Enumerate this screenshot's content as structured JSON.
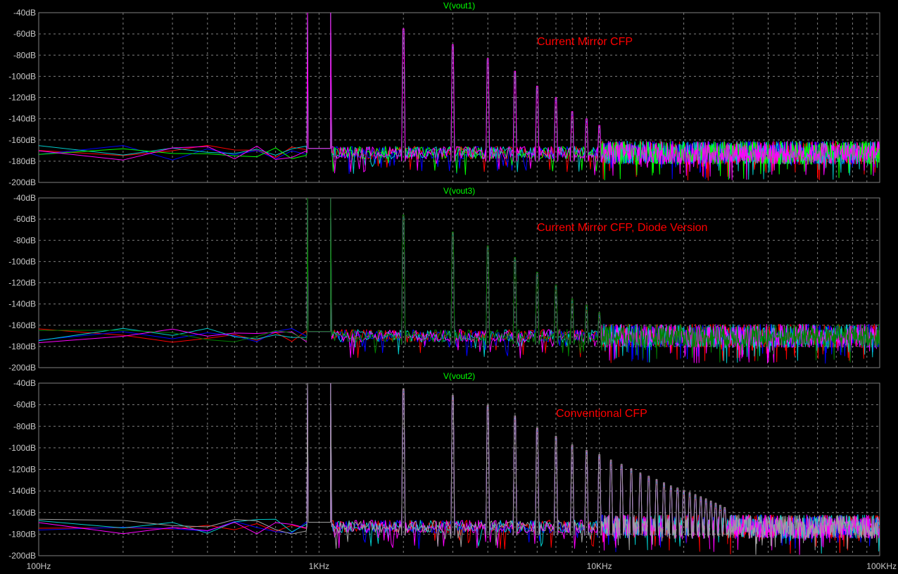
{
  "window": {
    "background": "#000000",
    "grid_color": "#7f7f7f",
    "label_color": "#c8c8c8"
  },
  "x_axis": {
    "scale": "log",
    "range_hz": [
      100,
      100000
    ],
    "tick_labels": [
      {
        "value": 100,
        "label": "100Hz"
      },
      {
        "value": 1000,
        "label": "1KHz"
      },
      {
        "value": 10000,
        "label": "10KHz"
      },
      {
        "value": 100000,
        "label": "100KHz"
      }
    ]
  },
  "chart_data": [
    {
      "type": "line",
      "title": "V(vout1)",
      "annotation": "Current Mirror CFP",
      "title_color": "#00ff00",
      "annotation_color": "#ff0000",
      "ylim": [
        -200,
        -40
      ],
      "y_tick_labels": [
        "-40dB",
        "-60dB",
        "-80dB",
        "-100dB",
        "-120dB",
        "-140dB",
        "-160dB",
        "-180dB",
        "-200dB"
      ],
      "grid": true,
      "fundamental_hz": 1000,
      "noise_floor_db": -172,
      "harmonics": [
        {
          "order": 2,
          "freq_hz": 2000,
          "db": -57
        },
        {
          "order": 3,
          "freq_hz": 3000,
          "db": -72
        },
        {
          "order": 4,
          "freq_hz": 4000,
          "db": -85
        },
        {
          "order": 5,
          "freq_hz": 5000,
          "db": -97
        },
        {
          "order": 6,
          "freq_hz": 6000,
          "db": -111
        },
        {
          "order": 7,
          "freq_hz": 7000,
          "db": -122
        },
        {
          "order": 8,
          "freq_hz": 8000,
          "db": -135
        },
        {
          "order": 9,
          "freq_hz": 9000,
          "db": -142
        },
        {
          "order": 10,
          "freq_hz": 10000,
          "db": -148
        }
      ],
      "series": [
        {
          "color": "#ff0000"
        },
        {
          "color": "#0000ff"
        },
        {
          "color": "#00cccc"
        },
        {
          "color": "#00ff00"
        },
        {
          "color": "#ff00ff"
        }
      ]
    },
    {
      "type": "line",
      "title": "V(vout3)",
      "annotation": "Current Mirror CFP, Diode Version",
      "title_color": "#00ff00",
      "annotation_color": "#ff0000",
      "ylim": [
        -200,
        -40
      ],
      "y_tick_labels": [
        "-40dB",
        "-60dB",
        "-80dB",
        "-100dB",
        "-120dB",
        "-140dB",
        "-160dB",
        "-180dB",
        "-200dB"
      ],
      "grid": true,
      "fundamental_hz": 1000,
      "noise_floor_db": -170,
      "harmonics": [
        {
          "order": 2,
          "freq_hz": 2000,
          "db": -58
        },
        {
          "order": 3,
          "freq_hz": 3000,
          "db": -74
        },
        {
          "order": 4,
          "freq_hz": 4000,
          "db": -87
        },
        {
          "order": 5,
          "freq_hz": 5000,
          "db": -98
        },
        {
          "order": 6,
          "freq_hz": 6000,
          "db": -112
        },
        {
          "order": 7,
          "freq_hz": 7000,
          "db": -124
        },
        {
          "order": 8,
          "freq_hz": 8000,
          "db": -137
        },
        {
          "order": 9,
          "freq_hz": 9000,
          "db": -143
        },
        {
          "order": 10,
          "freq_hz": 10000,
          "db": -150
        }
      ],
      "series": [
        {
          "color": "#ff0000"
        },
        {
          "color": "#0000ff"
        },
        {
          "color": "#00cccc"
        },
        {
          "color": "#ff00ff"
        },
        {
          "color": "#008000"
        }
      ]
    },
    {
      "type": "line",
      "title": "V(vout2)",
      "annotation": "Conventional CFP",
      "title_color": "#00ff00",
      "annotation_color": "#ff0000",
      "ylim": [
        -200,
        -40
      ],
      "y_tick_labels": [
        "-40dB",
        "-60dB",
        "-80dB",
        "-100dB",
        "-120dB",
        "-140dB",
        "-160dB",
        "-180dB",
        "-200dB"
      ],
      "grid": true,
      "fundamental_hz": 1000,
      "noise_floor_db": -173,
      "harmonics": [
        {
          "order": 2,
          "freq_hz": 2000,
          "db": -47
        },
        {
          "order": 3,
          "freq_hz": 3000,
          "db": -53
        },
        {
          "order": 4,
          "freq_hz": 4000,
          "db": -62
        },
        {
          "order": 5,
          "freq_hz": 5000,
          "db": -72
        },
        {
          "order": 6,
          "freq_hz": 6000,
          "db": -83
        },
        {
          "order": 7,
          "freq_hz": 7000,
          "db": -91
        },
        {
          "order": 8,
          "freq_hz": 8000,
          "db": -99
        },
        {
          "order": 9,
          "freq_hz": 9000,
          "db": -104
        },
        {
          "order": 10,
          "freq_hz": 10000,
          "db": -108
        },
        {
          "order": 11,
          "freq_hz": 11000,
          "db": -113
        },
        {
          "order": 12,
          "freq_hz": 12000,
          "db": -117
        },
        {
          "order": 13,
          "freq_hz": 13000,
          "db": -121
        },
        {
          "order": 14,
          "freq_hz": 14000,
          "db": -125
        },
        {
          "order": 15,
          "freq_hz": 15000,
          "db": -128
        },
        {
          "order": 16,
          "freq_hz": 16000,
          "db": -131
        },
        {
          "order": 17,
          "freq_hz": 17000,
          "db": -134
        },
        {
          "order": 18,
          "freq_hz": 18000,
          "db": -137
        },
        {
          "order": 19,
          "freq_hz": 19000,
          "db": -139
        },
        {
          "order": 20,
          "freq_hz": 20000,
          "db": -141
        },
        {
          "order": 21,
          "freq_hz": 21000,
          "db": -143
        },
        {
          "order": 22,
          "freq_hz": 22000,
          "db": -145
        },
        {
          "order": 23,
          "freq_hz": 23000,
          "db": -147
        },
        {
          "order": 24,
          "freq_hz": 24000,
          "db": -149
        },
        {
          "order": 25,
          "freq_hz": 25000,
          "db": -151
        },
        {
          "order": 26,
          "freq_hz": 26000,
          "db": -153
        },
        {
          "order": 27,
          "freq_hz": 27000,
          "db": -155
        },
        {
          "order": 28,
          "freq_hz": 28000,
          "db": -157
        }
      ],
      "series": [
        {
          "color": "#ff0000"
        },
        {
          "color": "#0000ff"
        },
        {
          "color": "#00cccc"
        },
        {
          "color": "#ff00ff"
        },
        {
          "color": "#a0a0a0"
        }
      ]
    }
  ]
}
